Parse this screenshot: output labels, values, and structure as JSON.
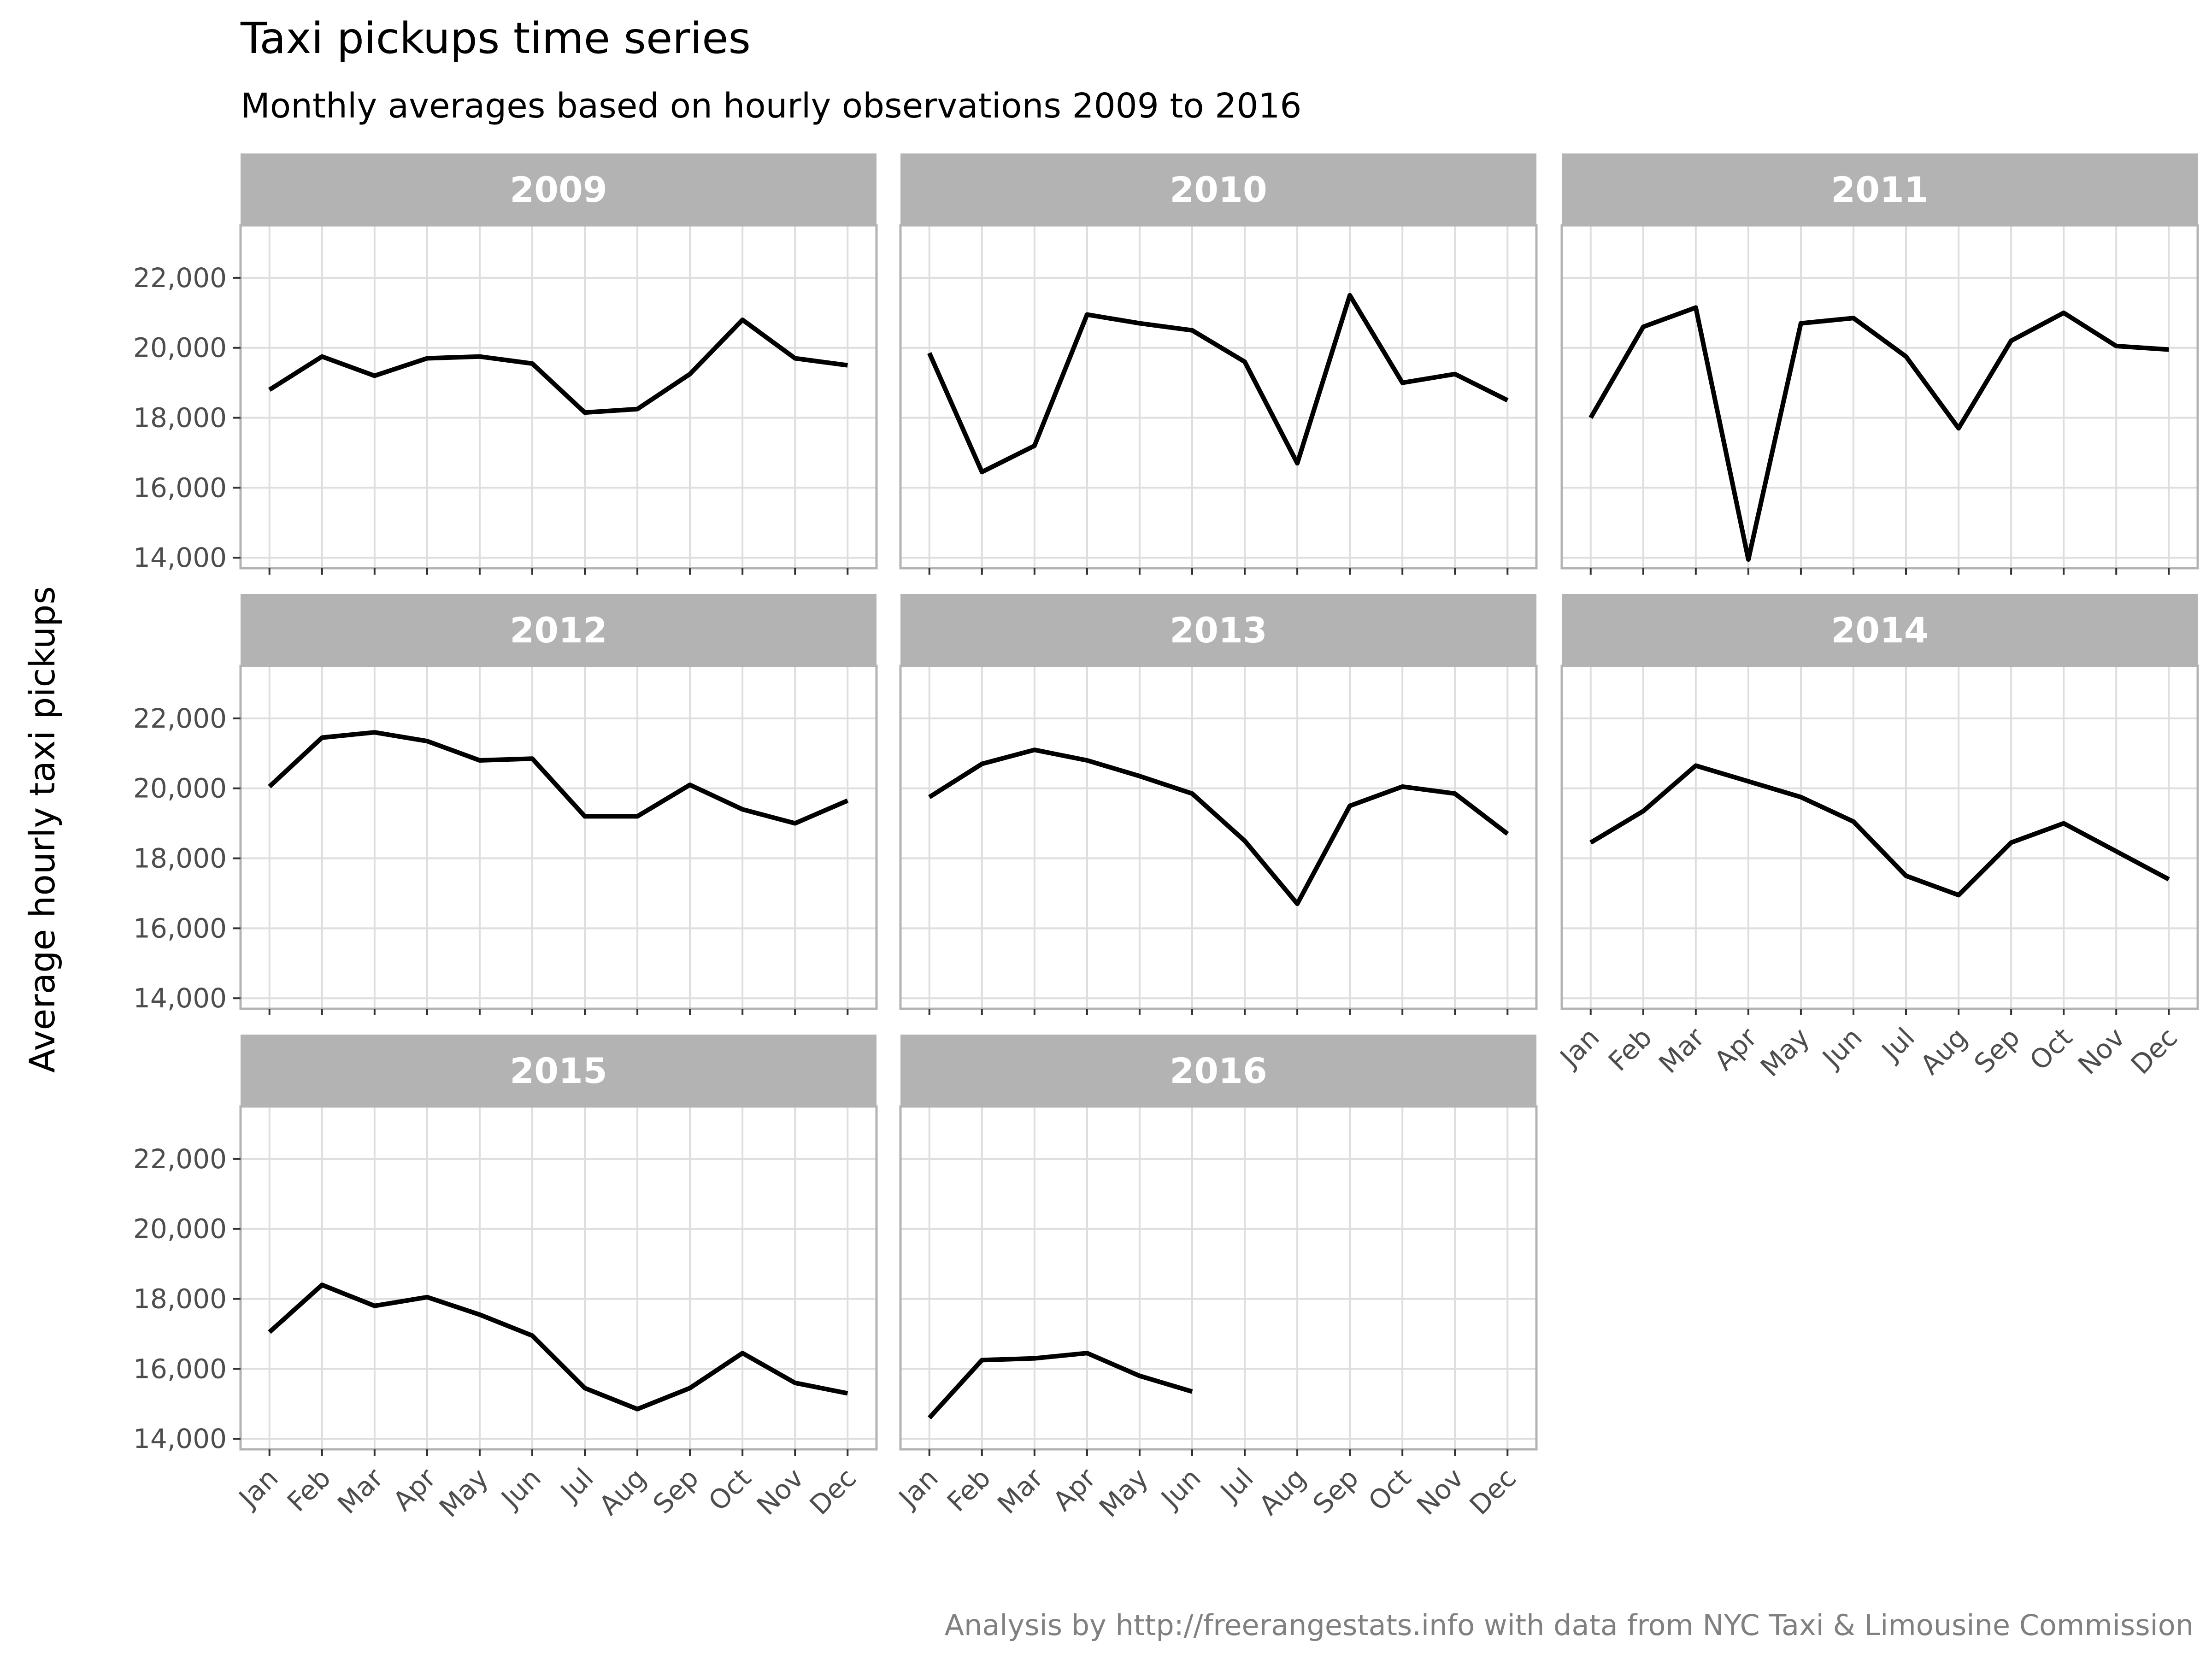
{
  "chart_data": {
    "type": "line",
    "title": "Taxi pickups time series",
    "subtitle": "Monthly averages based on hourly observations 2009 to 2016",
    "ylabel": "Average hourly taxi pickups",
    "xlabel": "",
    "caption": "Analysis by http://freerangestats.info with data from NYC Taxi & Limousine Commission",
    "categories": [
      "Jan",
      "Feb",
      "Mar",
      "Apr",
      "May",
      "Jun",
      "Jul",
      "Aug",
      "Sep",
      "Oct",
      "Nov",
      "Dec"
    ],
    "ylim": [
      13700,
      23500
    ],
    "yticks": [
      14000,
      16000,
      18000,
      20000,
      22000
    ],
    "ytick_labels": [
      "14,000",
      "16,000",
      "18,000",
      "20,000",
      "22,000"
    ],
    "grid": true,
    "line_color": "#000000",
    "strip_color": "#b3b3b3",
    "grid_color": "#dedede",
    "panel_border_color": "#b3b3b3",
    "facets": [
      {
        "label": "2009",
        "values": [
          18800,
          19750,
          19200,
          19700,
          19750,
          19550,
          18150,
          18250,
          19250,
          20800,
          19700,
          19500
        ]
      },
      {
        "label": "2010",
        "values": [
          19850,
          16450,
          17200,
          20950,
          20700,
          20500,
          19600,
          16700,
          21500,
          19000,
          19250,
          18500
        ]
      },
      {
        "label": "2011",
        "values": [
          18000,
          20600,
          21150,
          13950,
          20700,
          20850,
          19750,
          17700,
          20200,
          21000,
          20050,
          19950
        ]
      },
      {
        "label": "2012",
        "values": [
          20050,
          21450,
          21600,
          21350,
          20800,
          20850,
          19200,
          19200,
          20100,
          19400,
          19000,
          19650
        ]
      },
      {
        "label": "2013",
        "values": [
          19750,
          20700,
          21100,
          20800,
          20350,
          19850,
          18500,
          16700,
          19500,
          20050,
          19850,
          18700
        ]
      },
      {
        "label": "2014",
        "values": [
          18450,
          19350,
          20650,
          20200,
          19750,
          19050,
          17500,
          16950,
          18450,
          19000,
          18200,
          17400
        ]
      },
      {
        "label": "2015",
        "values": [
          17050,
          18400,
          17800,
          18050,
          17550,
          16950,
          15450,
          14850,
          15450,
          16450,
          15600,
          15300
        ]
      },
      {
        "label": "2016",
        "values": [
          14600,
          16250,
          16300,
          16450,
          15800,
          15350
        ]
      }
    ]
  }
}
